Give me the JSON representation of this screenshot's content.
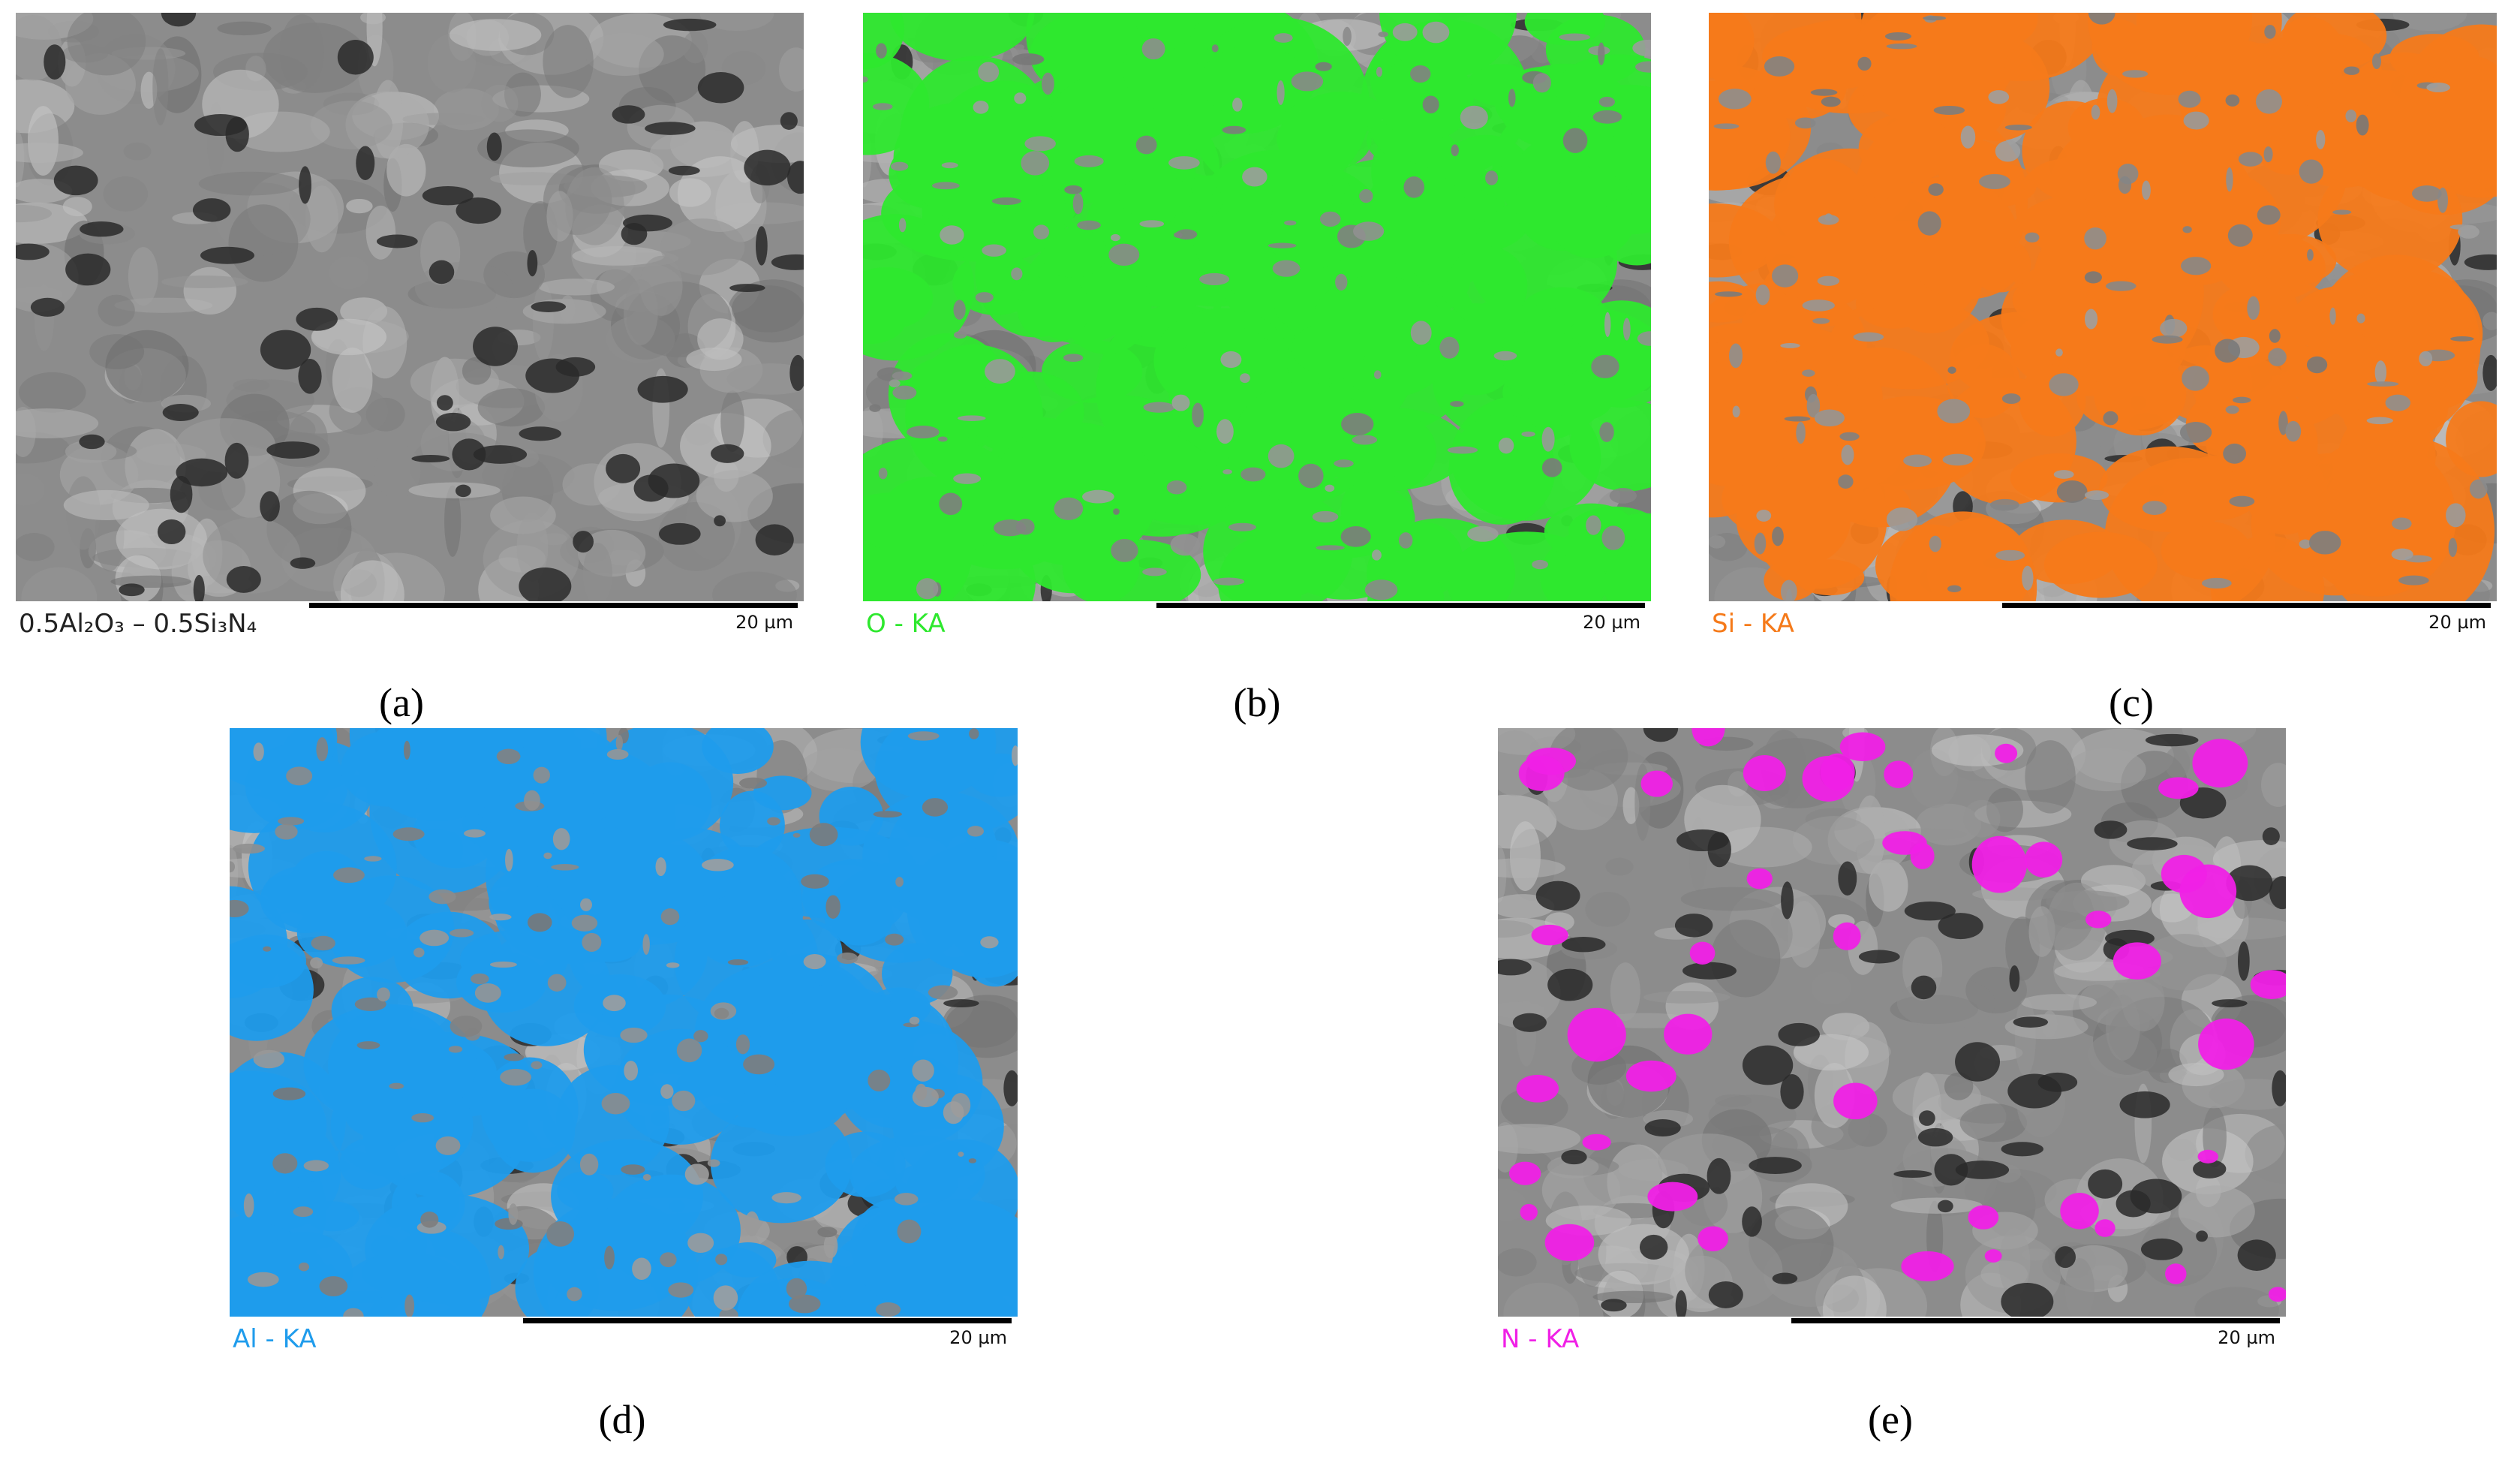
{
  "panels": [
    {
      "label": "0.5Al₂O₃ – 0.5Si₃N₄",
      "scale": "20 µm",
      "caption": "(a)",
      "color": "#222222"
    },
    {
      "label": "O - KA",
      "scale": "20 µm",
      "caption": "(b)",
      "color": "#2ee82e"
    },
    {
      "label": "Si - KA",
      "scale": "20 µm",
      "caption": "(c)",
      "color": "#f57a1a"
    },
    {
      "label": "Al - KA",
      "scale": "20 µm",
      "caption": "(d)",
      "color": "#1f9cec"
    },
    {
      "label": "N - KA",
      "scale": "20 µm",
      "caption": "(e)",
      "color": "#f020e6"
    }
  ]
}
